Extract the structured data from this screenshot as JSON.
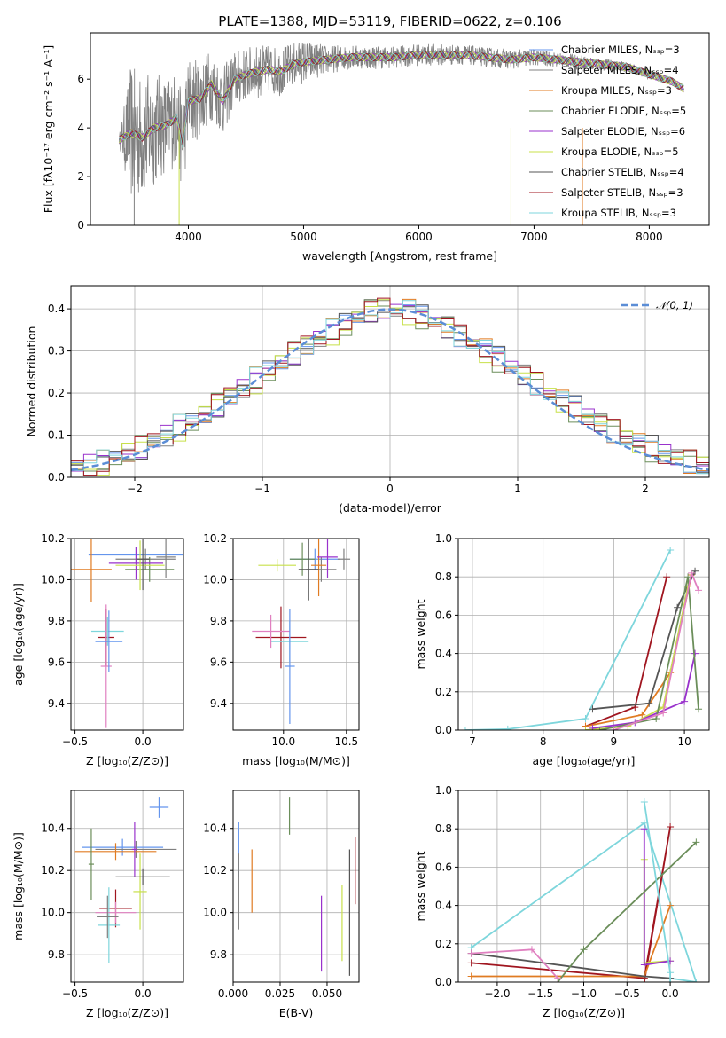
{
  "figure": {
    "title": "PLATE=1388, MJD=53119, FIBERID=0622, z=0.106",
    "series_colors": [
      "#6495ED",
      "#808080",
      "#E07B22",
      "#6B8E5A",
      "#9932CC",
      "#C8E04A",
      "#555555",
      "#A0151F",
      "#7ED6DC",
      "#E080C0"
    ]
  },
  "chart_data": [
    {
      "type": "line",
      "name": "spectrum",
      "xlabel": "wavelength [Angstrom, rest frame]",
      "ylabel": "Flux [fλ10⁻¹⁷ erg cm⁻² s⁻¹ A⁻¹]",
      "xlim": [
        3150,
        8520
      ],
      "ylim": [
        0,
        7.9
      ],
      "xticks": [
        "4000",
        "5000",
        "6000",
        "7000",
        "8000"
      ],
      "yticks": [
        "0",
        "2",
        "4",
        "6"
      ],
      "grid": false,
      "legend": {
        "placement": "upper-right",
        "entries": [
          {
            "label": "Chabrier MILES, Nₛₛₚ=3",
            "color": "#6495ED"
          },
          {
            "label": "Salpeter MILES, Nₛₛₚ=4",
            "color": "#808080"
          },
          {
            "label": "Kroupa MILES, Nₛₛₚ=3",
            "color": "#E07B22"
          },
          {
            "label": "Chabrier ELODIE, Nₛₛₚ=5",
            "color": "#6B8E5A"
          },
          {
            "label": "Salpeter ELODIE, Nₛₛₚ=6",
            "color": "#9932CC"
          },
          {
            "label": "Kroupa ELODIE, Nₛₛₚ=5",
            "color": "#C8E04A"
          },
          {
            "label": "Chabrier STELIB, Nₛₛₚ=4",
            "color": "#555555"
          },
          {
            "label": "Salpeter STELIB, Nₛₛₚ=3",
            "color": "#A0151F"
          },
          {
            "label": "Kroupa STELIB, Nₛₛₚ=3",
            "color": "#7ED6DC"
          }
        ]
      },
      "model_x": [
        3400,
        3500,
        3600,
        3700,
        3800,
        3900,
        3950,
        4000,
        4100,
        4200,
        4300,
        4400,
        4500,
        4600,
        4700,
        4800,
        4900,
        5000,
        5200,
        5400,
        5600,
        5800,
        6000,
        6200,
        6400,
        6600,
        6800,
        7000,
        7200,
        7400,
        7600,
        7800,
        8000,
        8200,
        8300
      ],
      "model_y": [
        3.5,
        3.8,
        3.6,
        4.0,
        4.1,
        4.4,
        3.3,
        5.1,
        5.2,
        5.8,
        5.1,
        6.0,
        6.2,
        6.3,
        6.4,
        6.3,
        6.6,
        6.7,
        6.8,
        6.9,
        6.9,
        6.9,
        7.0,
        7.0,
        7.0,
        6.9,
        6.8,
        6.9,
        6.8,
        6.7,
        6.6,
        6.5,
        6.2,
        5.9,
        5.6
      ],
      "noise_scale": [
        0.2,
        2.8,
        2.5,
        2.4,
        2.0,
        2.0,
        1.9,
        1.9,
        1.6,
        1.5,
        1.4,
        1.2,
        1.1,
        1.1,
        1.0,
        1.0,
        0.9,
        0.9,
        0.6,
        0.5,
        0.5,
        0.45,
        0.45,
        0.45,
        0.4,
        0.4,
        0.4,
        0.35,
        0.3,
        0.3,
        0.25,
        0.2,
        0.2,
        0.15,
        0.1
      ]
    },
    {
      "type": "bar",
      "name": "residuals",
      "xlabel": "(data-model)/error",
      "ylabel": "Normed distribution",
      "xlim": [
        -2.5,
        2.5
      ],
      "ylim": [
        0,
        0.455
      ],
      "xticks": [
        "−2",
        "−1",
        "0",
        "1",
        "2"
      ],
      "yticks": [
        "0.0",
        "0.1",
        "0.2",
        "0.3",
        "0.4"
      ],
      "grid": true,
      "legend": {
        "placement": "upper-right",
        "entries": [
          {
            "label": "𝒩(0, 1)",
            "color": "#5B8DD6"
          }
        ]
      },
      "bin_width": 0.1,
      "x": [
        -2.45,
        -2.35,
        -2.25,
        -2.15,
        -2.05,
        -1.95,
        -1.85,
        -1.75,
        -1.65,
        -1.55,
        -1.45,
        -1.35,
        -1.25,
        -1.15,
        -1.05,
        -0.95,
        -0.85,
        -0.75,
        -0.65,
        -0.55,
        -0.45,
        -0.35,
        -0.25,
        -0.15,
        -0.05,
        0.05,
        0.15,
        0.25,
        0.35,
        0.45,
        0.55,
        0.65,
        0.75,
        0.85,
        0.95,
        1.05,
        1.15,
        1.25,
        1.35,
        1.45,
        1.55,
        1.65,
        1.75,
        1.85,
        1.95,
        2.05,
        2.15,
        2.25,
        2.35,
        2.45
      ],
      "values": [
        0.025,
        0.028,
        0.034,
        0.045,
        0.06,
        0.072,
        0.086,
        0.1,
        0.118,
        0.13,
        0.15,
        0.172,
        0.192,
        0.212,
        0.23,
        0.252,
        0.275,
        0.295,
        0.312,
        0.33,
        0.345,
        0.362,
        0.382,
        0.395,
        0.4,
        0.398,
        0.392,
        0.38,
        0.37,
        0.355,
        0.335,
        0.318,
        0.3,
        0.28,
        0.262,
        0.242,
        0.222,
        0.2,
        0.18,
        0.162,
        0.145,
        0.128,
        0.11,
        0.095,
        0.08,
        0.068,
        0.056,
        0.046,
        0.038,
        0.03
      ]
    },
    {
      "type": "scatter",
      "name": "Z-age",
      "xlabel": "Z [log₁₀(Z/Z⊙)]",
      "ylabel": "age  [log₁₀(age/yr)]",
      "xlim": [
        -0.53,
        0.3
      ],
      "ylim": [
        9.27,
        10.2
      ],
      "xticks": [
        "−0.5",
        "0.0"
      ],
      "yticks": [
        "9.4",
        "9.6",
        "9.8",
        "10.0",
        "10.2"
      ],
      "grid": true,
      "points": [
        {
          "x": -0.05,
          "y": 10.12,
          "xerr": 0.35,
          "yerr": 0.04
        },
        {
          "x": 0.02,
          "y": 10.1,
          "xerr": 0.22,
          "yerr": 0.05
        },
        {
          "x": -0.38,
          "y": 10.05,
          "xerr": 0.15,
          "yerr": 0.16
        },
        {
          "x": 0.05,
          "y": 10.05,
          "xerr": 0.18,
          "yerr": 0.06
        },
        {
          "x": -0.05,
          "y": 10.08,
          "xerr": 0.2,
          "yerr": 0.08
        },
        {
          "x": -0.02,
          "y": 10.07,
          "xerr": 0.18,
          "yerr": 0.12
        },
        {
          "x": 0.0,
          "y": 10.1,
          "xerr": 0.05,
          "yerr": 0.15
        },
        {
          "x": -0.27,
          "y": 9.72,
          "xerr": 0.06,
          "yerr": 0.14
        },
        {
          "x": -0.26,
          "y": 9.75,
          "xerr": 0.12,
          "yerr": 0.07
        },
        {
          "x": -0.27,
          "y": 9.58,
          "xerr": 0.04,
          "yerr": 0.3
        },
        {
          "x": -0.25,
          "y": 9.7,
          "xerr": 0.1,
          "yerr": 0.15
        },
        {
          "x": 0.17,
          "y": 10.11,
          "xerr": 0.07,
          "yerr": 0.1
        }
      ]
    },
    {
      "type": "scatter",
      "name": "mass-age",
      "xlabel": "mass [log₁₀(M/M⊙)]",
      "ylabel": "",
      "xlim": [
        9.6,
        10.6
      ],
      "ylim": [
        9.27,
        10.2
      ],
      "xticks": [
        "10.0",
        "10.5"
      ],
      "yticks": [
        "9.4",
        "9.6",
        "9.8",
        "10.0",
        "10.2"
      ],
      "grid": true,
      "points": [
        {
          "x": 10.25,
          "y": 10.1,
          "xerr": 0.2,
          "yerr": 0.05
        },
        {
          "x": 10.3,
          "y": 10.05,
          "xerr": 0.12,
          "yerr": 0.06
        },
        {
          "x": 10.28,
          "y": 10.07,
          "xerr": 0.06,
          "yerr": 0.15
        },
        {
          "x": 10.15,
          "y": 10.1,
          "xerr": 0.1,
          "yerr": 0.08
        },
        {
          "x": 10.35,
          "y": 10.11,
          "xerr": 0.08,
          "yerr": 0.1
        },
        {
          "x": 9.95,
          "y": 10.07,
          "xerr": 0.15,
          "yerr": 0.03
        },
        {
          "x": 10.2,
          "y": 10.05,
          "xerr": 0.08,
          "yerr": 0.15
        },
        {
          "x": 9.98,
          "y": 9.72,
          "xerr": 0.2,
          "yerr": 0.15
        },
        {
          "x": 10.05,
          "y": 9.7,
          "xerr": 0.15,
          "yerr": 0.1
        },
        {
          "x": 9.9,
          "y": 9.75,
          "xerr": 0.15,
          "yerr": 0.08
        },
        {
          "x": 10.05,
          "y": 9.58,
          "xerr": 0.04,
          "yerr": 0.28
        },
        {
          "x": 10.48,
          "y": 10.1,
          "xerr": 0.05,
          "yerr": 0.05
        }
      ]
    },
    {
      "type": "line",
      "name": "age-weight",
      "xlabel": "age  [log₁₀(age/yr)]",
      "ylabel": "mass weight",
      "xlim": [
        6.8,
        10.35
      ],
      "ylim": [
        0,
        1.0
      ],
      "xticks": [
        "7",
        "8",
        "9",
        "10"
      ],
      "yticks": [
        "0.0",
        "0.2",
        "0.4",
        "0.6",
        "0.8",
        "1.0"
      ],
      "grid": true,
      "series": [
        {
          "x": [
            6.9,
            7.5,
            8.6,
            9.8
          ],
          "y": [
            0.0,
            0.005,
            0.06,
            0.94
          ]
        },
        {
          "x": [
            8.6,
            9.3,
            9.75
          ],
          "y": [
            0.02,
            0.12,
            0.8
          ]
        },
        {
          "x": [
            8.6,
            9.4,
            9.8,
            10.1
          ],
          "y": [
            0.02,
            0.08,
            0.3,
            0.81
          ]
        },
        {
          "x": [
            8.7,
            9.5,
            9.9,
            10.15
          ],
          "y": [
            0.11,
            0.14,
            0.64,
            0.83
          ]
        },
        {
          "x": [
            8.6,
            9.2,
            9.7,
            10.05
          ],
          "y": [
            0.0,
            0.02,
            0.12,
            0.75
          ]
        },
        {
          "x": [
            8.7,
            9.3,
            10.0,
            10.15
          ],
          "y": [
            0.01,
            0.04,
            0.15,
            0.4
          ]
        },
        {
          "x": [
            8.8,
            9.6,
            10.05,
            10.2
          ],
          "y": [
            0.0,
            0.06,
            0.8,
            0.11
          ]
        },
        {
          "x": [
            9.0,
            9.7,
            10.1,
            10.2
          ],
          "y": [
            0.0,
            0.09,
            0.82,
            0.73
          ]
        }
      ]
    },
    {
      "type": "scatter",
      "name": "Z-mass",
      "xlabel": "Z [log₁₀(Z/Z⊙)]",
      "ylabel": "mass [log₁₀(M/M⊙)]",
      "xlim": [
        -0.53,
        0.3
      ],
      "ylim": [
        9.67,
        10.58
      ],
      "xticks": [
        "−0.5",
        "0.0"
      ],
      "yticks": [
        "9.8",
        "10.0",
        "10.2",
        "10.4"
      ],
      "grid": true,
      "points": [
        {
          "x": -0.15,
          "y": 10.31,
          "xerr": 0.3,
          "yerr": 0.04
        },
        {
          "x": -0.05,
          "y": 10.3,
          "xerr": 0.3,
          "yerr": 0.04
        },
        {
          "x": -0.2,
          "y": 10.29,
          "xerr": 0.3,
          "yerr": 0.04
        },
        {
          "x": -0.38,
          "y": 10.23,
          "xerr": 0.02,
          "yerr": 0.17
        },
        {
          "x": -0.06,
          "y": 10.3,
          "xerr": 0.02,
          "yerr": 0.13
        },
        {
          "x": -0.02,
          "y": 10.1,
          "xerr": 0.05,
          "yerr": 0.18
        },
        {
          "x": 0.0,
          "y": 10.17,
          "xerr": 0.2,
          "yerr": 0.04
        },
        {
          "x": -0.2,
          "y": 10.02,
          "xerr": 0.12,
          "yerr": 0.09
        },
        {
          "x": -0.25,
          "y": 9.94,
          "xerr": 0.08,
          "yerr": 0.18
        },
        {
          "x": -0.2,
          "y": 10.0,
          "xerr": 0.15,
          "yerr": 0.05
        },
        {
          "x": 0.12,
          "y": 10.5,
          "xerr": 0.07,
          "yerr": 0.05
        },
        {
          "x": -0.26,
          "y": 9.98,
          "xerr": 0.08,
          "yerr": 0.1
        }
      ]
    },
    {
      "type": "scatter",
      "name": "EBV-mass",
      "xlabel": "E(B-V)",
      "ylabel": "",
      "xlim": [
        0.0,
        0.067
      ],
      "ylim": [
        9.67,
        10.58
      ],
      "xticks": [
        "0.000",
        "0.025",
        "0.050"
      ],
      "yticks": [
        "9.8",
        "10.0",
        "10.2",
        "10.4"
      ],
      "grid": true,
      "points": [
        {
          "x": 0.003,
          "y": 10.3,
          "xerr": 0,
          "yerr": 0.13
        },
        {
          "x": 0.003,
          "y": 10.1,
          "xerr": 0,
          "yerr": 0.18
        },
        {
          "x": 0.01,
          "y": 10.15,
          "xerr": 0,
          "yerr": 0.15
        },
        {
          "x": 0.03,
          "y": 10.46,
          "xerr": 0,
          "yerr": 0.09
        },
        {
          "x": 0.047,
          "y": 9.9,
          "xerr": 0,
          "yerr": 0.18
        },
        {
          "x": 0.058,
          "y": 9.95,
          "xerr": 0,
          "yerr": 0.18
        },
        {
          "x": 0.062,
          "y": 10.0,
          "xerr": 0,
          "yerr": 0.3
        },
        {
          "x": 0.065,
          "y": 10.2,
          "xerr": 0,
          "yerr": 0.16
        }
      ]
    },
    {
      "type": "line",
      "name": "Z-weight",
      "xlabel": "Z [log₁₀(Z/Z⊙)]",
      "ylabel": "mass weight",
      "xlim": [
        -2.45,
        0.45
      ],
      "ylim": [
        0,
        1.0
      ],
      "xticks": [
        "−2.0",
        "−1.5",
        "−1.0",
        "−0.5",
        "0.0"
      ],
      "yticks": [
        "0.0",
        "0.2",
        "0.4",
        "0.6",
        "0.8",
        "1.0"
      ],
      "grid": true,
      "series": [
        {
          "x": [
            -2.3,
            -0.3,
            0.3,
            0.0
          ],
          "y": [
            0.18,
            0.83,
            0.0,
            0.02
          ]
        },
        {
          "x": [
            -2.3,
            -0.3,
            0.0,
            -0.3
          ],
          "y": [
            0.1,
            0.02,
            0.81,
            0.0
          ]
        },
        {
          "x": [
            -2.3,
            -0.3,
            0.0
          ],
          "y": [
            0.03,
            0.03,
            0.4
          ]
        },
        {
          "x": [
            -2.3,
            -0.3,
            0.0
          ],
          "y": [
            0.15,
            0.03,
            0.02
          ]
        },
        {
          "x": [
            -0.3,
            -0.3,
            0.0
          ],
          "y": [
            0.64,
            0.1,
            0.11
          ]
        },
        {
          "x": [
            -0.3,
            -0.3,
            0.0
          ],
          "y": [
            0.8,
            0.09,
            0.11
          ]
        },
        {
          "x": [
            -1.3,
            -1.0,
            0.3
          ],
          "y": [
            0.0,
            0.17,
            0.73
          ]
        },
        {
          "x": [
            -1.3,
            -1.6,
            -2.3
          ],
          "y": [
            0.02,
            0.17,
            0.15
          ]
        },
        {
          "x": [
            -0.3,
            0.0,
            0.0
          ],
          "y": [
            0.94,
            0.05,
            0.0
          ]
        }
      ]
    }
  ]
}
